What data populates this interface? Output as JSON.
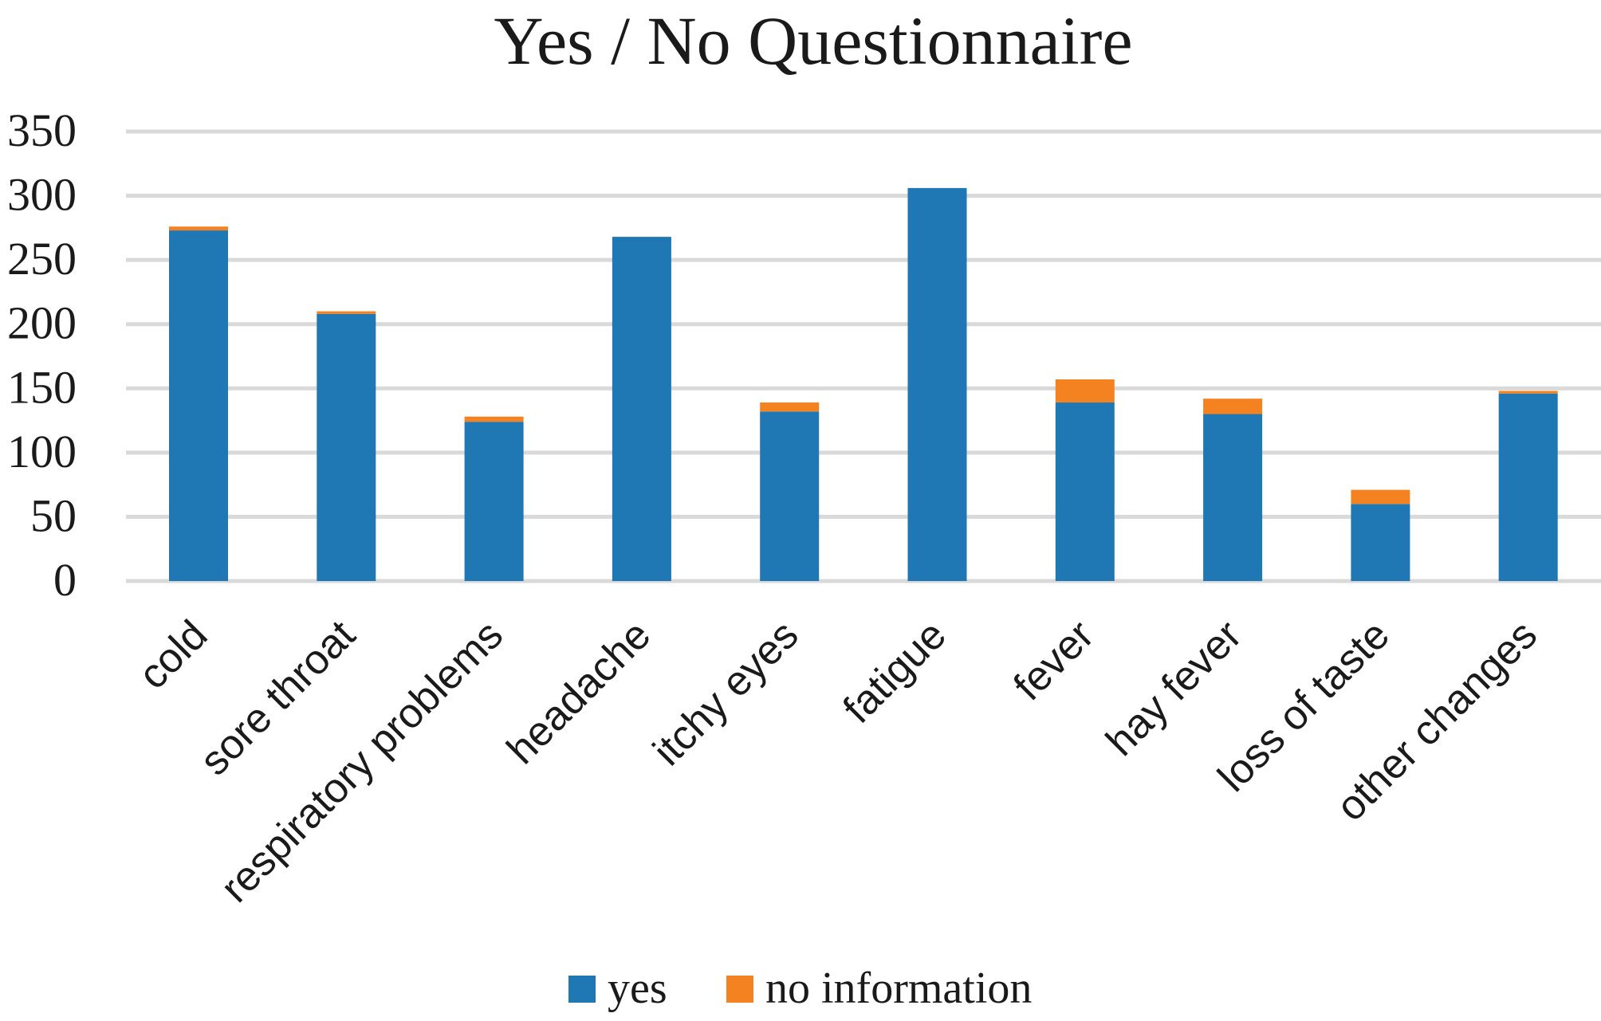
{
  "chart_data": {
    "type": "bar",
    "stacked": true,
    "title": "Yes / No Questionnaire",
    "xlabel": "",
    "ylabel": "",
    "categories": [
      "cold",
      "sore throat",
      "respiratory problems",
      "headache",
      "itchy eyes",
      "fatigue",
      "fever",
      "hay fever",
      "loss of taste",
      "other changes"
    ],
    "series": [
      {
        "name": "yes",
        "color": "#1f77b4",
        "values": [
          273,
          208,
          124,
          268,
          132,
          306,
          139,
          130,
          60,
          146
        ]
      },
      {
        "name": "no information",
        "color": "#f58220",
        "values": [
          3,
          2,
          4,
          0,
          7,
          0,
          18,
          12,
          11,
          2
        ]
      }
    ],
    "yticks": [
      "0",
      "50",
      "100",
      "150",
      "200",
      "250",
      "300",
      "350"
    ],
    "ylim": [
      0,
      350
    ],
    "grid": true,
    "legend_position": "bottom",
    "colors": {
      "grid": "#d9d9d9",
      "text": "#1a1a1a"
    }
  }
}
